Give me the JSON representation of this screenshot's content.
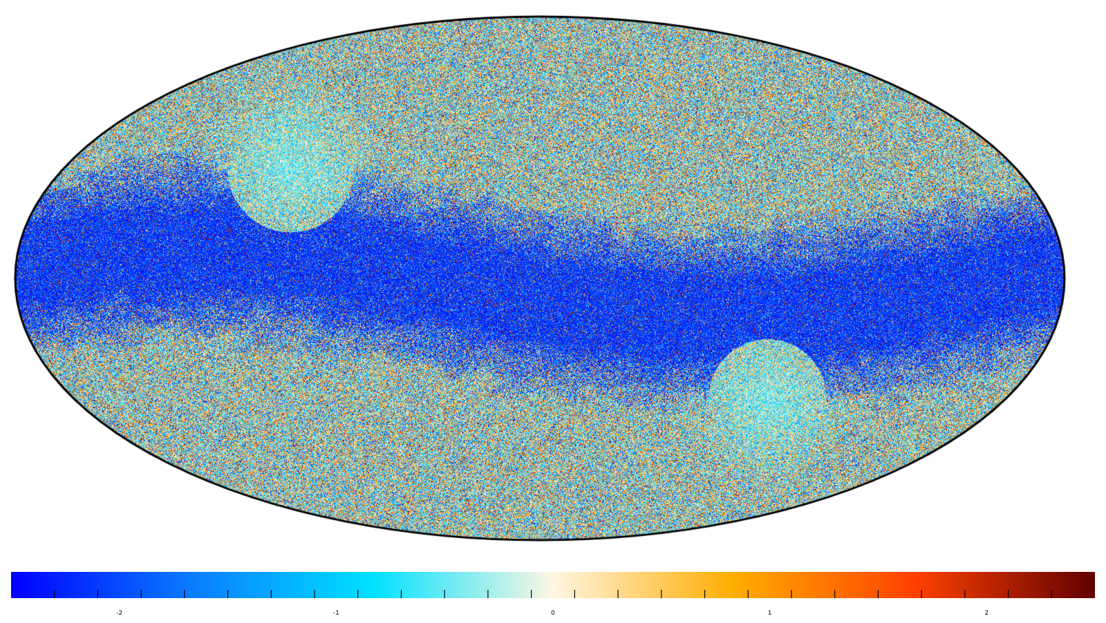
{
  "chart_data": {
    "type": "heatmap",
    "projection": "mollweide",
    "title": "",
    "colormap": "blue-cyan-cream-orange-red-darkred",
    "colormap_stops": [
      "#0000ff",
      "#0a7cff",
      "#00e1ff",
      "#fff6e2",
      "#ffad00",
      "#ff4000",
      "#600000"
    ],
    "grid": false,
    "outline_color": "#000000",
    "masked_color": "#808080",
    "colorbar": {
      "placement": "bottom",
      "range": [
        -2.5,
        2.5
      ],
      "major_ticks": [
        -2,
        -1,
        0,
        1,
        2
      ],
      "tick_labels": [
        "-2",
        "-1",
        "0",
        "1",
        "2"
      ],
      "minor_tick_step": 0.2
    }
  }
}
